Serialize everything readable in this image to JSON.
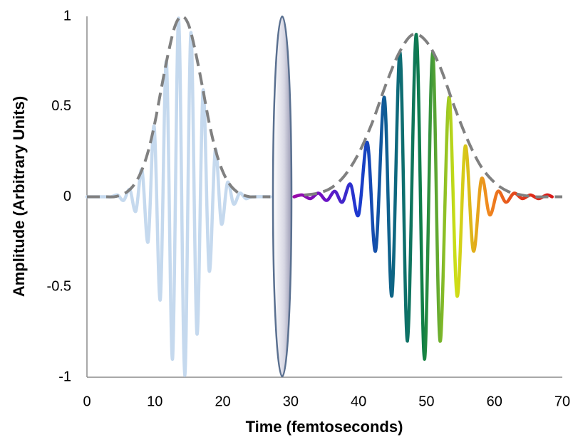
{
  "chart_data": {
    "type": "line",
    "x_label": "Time (femtoseconds)",
    "y_label": "Amplitude (Arbitrary Units)",
    "xlim": [
      0,
      70
    ],
    "ylim": [
      -1,
      1
    ],
    "xticks": [
      0,
      10,
      20,
      30,
      40,
      50,
      60,
      70
    ],
    "yticks": [
      -1,
      -0.5,
      0,
      0.5,
      1
    ],
    "grid": false,
    "series": [
      {
        "color": "#c5d9ee",
        "style": "solid",
        "x": [
          0,
          2.7,
          3.6,
          4.5,
          5.4,
          6.3,
          7.2,
          8.1,
          9.0,
          9.9,
          10.8,
          11.7,
          12.6,
          13.5,
          14.4,
          15.3,
          16.2,
          17.1,
          18.0,
          18.9,
          19.8,
          20.7,
          21.6,
          22.5,
          23.4,
          24.3,
          27
        ],
        "values": [
          0,
          0,
          0,
          0.01,
          -0.02,
          0.04,
          -0.08,
          0.15,
          -0.25,
          0.39,
          -0.57,
          0.75,
          -0.9,
          0.99,
          -0.99,
          0.91,
          -0.76,
          0.59,
          -0.41,
          0.26,
          -0.15,
          0.08,
          -0.04,
          0.02,
          -0.01,
          0,
          0
        ]
      },
      {
        "color": "#808080",
        "style": "dashed",
        "x": [
          0,
          1,
          2,
          3,
          4,
          5,
          6,
          7,
          8,
          9,
          10,
          11,
          12,
          13,
          14,
          15,
          16,
          17,
          18,
          19,
          20,
          21,
          22,
          23,
          24,
          25,
          26,
          27
        ],
        "values": [
          0,
          0,
          0,
          0,
          0,
          0.01,
          0.03,
          0.07,
          0.14,
          0.25,
          0.41,
          0.61,
          0.8,
          0.95,
          1,
          0.95,
          0.8,
          0.61,
          0.41,
          0.25,
          0.14,
          0.07,
          0.03,
          0.01,
          0,
          0,
          0,
          0
        ]
      },
      {
        "colors": [
          "#9a0aa8",
          "#6a12c6",
          "#1a3ad0",
          "#0e6488",
          "#0f7f45",
          "#cde016",
          "#f08a1e",
          "#e23a1c",
          "#d81818"
        ],
        "style": "solid",
        "x": [
          30.5,
          31.7,
          32.9,
          34.1,
          35.3,
          36.5,
          37.6,
          38.8,
          40.0,
          41.3,
          42.5,
          43.8,
          44.9,
          46.1,
          47.2,
          48.5,
          49.7,
          50.9,
          52.0,
          53.3,
          54.5,
          55.7,
          56.9,
          58.1,
          59.3,
          60.5,
          61.7,
          62.9,
          64.1,
          65.3,
          66.5,
          67.7,
          68.5
        ],
        "values": [
          0,
          0.01,
          -0.01,
          0.02,
          -0.02,
          0.03,
          -0.03,
          0.07,
          -0.1,
          0.3,
          -0.3,
          0.55,
          -0.55,
          0.8,
          -0.8,
          0.9,
          -0.9,
          0.8,
          -0.8,
          0.55,
          -0.55,
          0.28,
          -0.3,
          0.1,
          -0.1,
          0.03,
          -0.03,
          0.02,
          -0.01,
          0.01,
          -0.01,
          0.01,
          0
        ]
      },
      {
        "color": "#808080",
        "style": "dashed",
        "x": [
          32,
          34,
          36,
          38,
          40,
          42,
          44,
          46,
          48,
          50,
          52,
          54,
          56,
          58,
          60,
          62,
          64,
          66,
          68,
          70
        ],
        "values": [
          0.01,
          0.02,
          0.05,
          0.12,
          0.24,
          0.41,
          0.62,
          0.8,
          0.9,
          0.86,
          0.72,
          0.51,
          0.32,
          0.17,
          0.08,
          0.03,
          0.01,
          0,
          0,
          0
        ]
      }
    ]
  }
}
